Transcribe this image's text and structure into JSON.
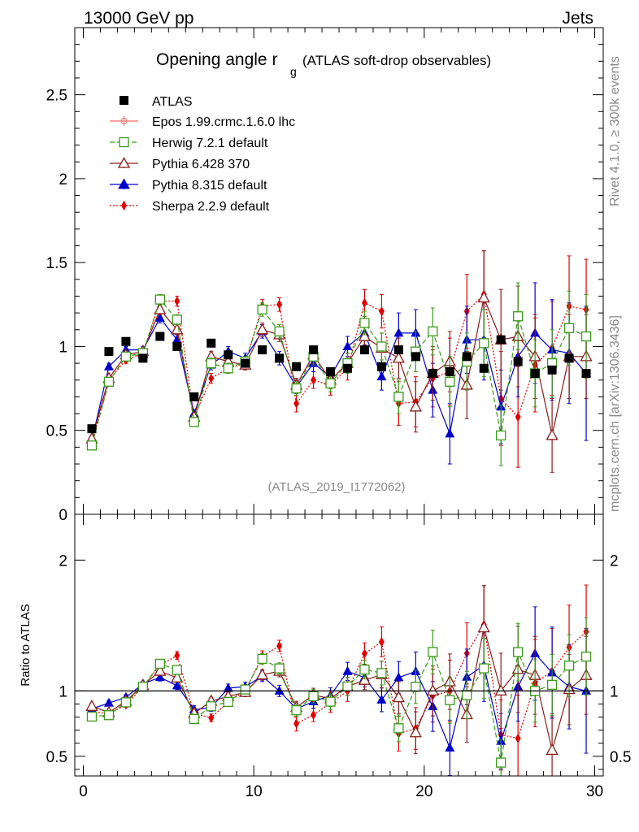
{
  "header": {
    "left": "13000 GeV pp",
    "right": "Jets"
  },
  "side_labels": {
    "rivet": "Rivet 4.1.0, ≥ 300k events",
    "mcplots": "mcplots.cern.ch [arXiv:1306.3436]"
  },
  "chart_data": {
    "type": "scatter",
    "title_main": "Opening angle r",
    "title_sub": "g",
    "title_note": "(ATLAS soft-drop observables)",
    "watermark": "(ATLAS_2019_I1772062)",
    "x": [
      0.5,
      1.5,
      2.5,
      3.5,
      4.5,
      5.5,
      6.5,
      7.5,
      8.5,
      9.5,
      10.5,
      11.5,
      12.5,
      13.5,
      14.5,
      15.5,
      16.5,
      17.5,
      18.5,
      19.5,
      20.5,
      21.5,
      22.5,
      23.5,
      24.5,
      25.5,
      26.5,
      27.5,
      28.5,
      29.5
    ],
    "xlim": [
      -0.5,
      30.5
    ],
    "xticks": [
      0,
      10,
      20,
      30
    ],
    "main": {
      "ylim": [
        0,
        2.9
      ],
      "yticks": [
        0,
        0.5,
        1,
        1.5,
        2,
        2.5
      ],
      "yticklabels": [
        "0",
        "0.5",
        "1",
        "1.5",
        "2",
        "2.5"
      ]
    },
    "ratio": {
      "ylabel": "Ratio to ATLAS",
      "ylim": [
        0.35,
        2.35
      ],
      "yticks": [
        0.5,
        1,
        2
      ],
      "yticklabels": [
        "0.5",
        "1",
        "2"
      ]
    },
    "series": [
      {
        "name": "ATLAS",
        "marker": "square",
        "color": "#000000",
        "values": [
          0.51,
          0.97,
          1.03,
          0.93,
          1.06,
          1.0,
          0.7,
          1.02,
          0.95,
          0.9,
          0.98,
          0.93,
          0.88,
          0.98,
          0.85,
          0.87,
          0.98,
          0.88,
          0.98,
          0.94,
          0.84,
          0.85,
          0.94,
          0.87,
          1.04,
          0.91,
          0.84,
          0.86,
          0.93,
          0.84
        ],
        "errors": [
          0.01,
          0.01,
          0.01,
          0.01,
          0.01,
          0.01,
          0.01,
          0.01,
          0.01,
          0.01,
          0.01,
          0.01,
          0.02,
          0.02,
          0.02,
          0.02,
          0.02,
          0.02,
          0.03,
          0.03,
          0.03,
          0.03,
          0.04,
          0.04,
          0.04,
          0.05,
          0.05,
          0.05,
          0.06,
          0.06
        ]
      },
      {
        "name": "Epos 1.99.crmc.1.6.0 lhc",
        "marker": "plus-circle",
        "color": "#f08080",
        "values": []
      },
      {
        "name": "Herwig 7.2.1 default",
        "marker": "open-square",
        "color": "#3a9a1a",
        "dash": "6,3",
        "values": [
          0.41,
          0.79,
          0.94,
          0.96,
          1.28,
          1.16,
          0.55,
          0.9,
          0.87,
          0.91,
          1.22,
          1.09,
          0.75,
          0.94,
          0.78,
          0.9,
          1.14,
          1.0,
          0.7,
          0.97,
          1.09,
          0.79,
          0.91,
          1.02,
          0.47,
          1.18,
          0.84,
          0.9,
          1.11,
          1.06
        ],
        "errors": [
          0.01,
          0.02,
          0.02,
          0.02,
          0.03,
          0.03,
          0.02,
          0.03,
          0.03,
          0.03,
          0.04,
          0.04,
          0.04,
          0.05,
          0.05,
          0.06,
          0.07,
          0.08,
          0.1,
          0.12,
          0.14,
          0.15,
          0.17,
          0.2,
          0.18,
          0.2,
          0.2,
          0.2,
          0.22,
          0.25
        ]
      },
      {
        "name": "Pythia 6.428 370",
        "marker": "open-triangle",
        "color": "#8b1a1a",
        "values": [
          0.45,
          0.81,
          0.95,
          0.97,
          1.22,
          1.1,
          0.58,
          0.94,
          0.91,
          0.89,
          1.1,
          1.07,
          0.77,
          0.95,
          0.8,
          0.9,
          1.06,
          0.99,
          0.93,
          0.64,
          0.84,
          0.91,
          0.77,
          1.29,
          1.04,
          1.06,
          0.94,
          0.47,
          0.94,
          0.94
        ],
        "errors": [
          0.01,
          0.02,
          0.02,
          0.02,
          0.03,
          0.03,
          0.02,
          0.03,
          0.03,
          0.03,
          0.04,
          0.04,
          0.04,
          0.05,
          0.05,
          0.06,
          0.07,
          0.09,
          0.12,
          0.15,
          0.16,
          0.18,
          0.2,
          0.28,
          0.3,
          0.3,
          0.25,
          0.22,
          0.25,
          0.25
        ]
      },
      {
        "name": "Pythia 8.315 default",
        "marker": "triangle",
        "color": "#0000cc",
        "values": [
          0.44,
          0.88,
          0.98,
          0.98,
          1.17,
          1.04,
          0.6,
          0.89,
          0.97,
          0.93,
          1.09,
          0.93,
          0.76,
          0.9,
          0.82,
          1.0,
          1.08,
          0.82,
          1.08,
          1.08,
          0.74,
          0.48,
          1.04,
          1.04,
          0.64,
          0.94,
          1.08,
          0.98,
          0.96,
          0.84
        ],
        "errors": [
          0.01,
          0.02,
          0.02,
          0.02,
          0.03,
          0.03,
          0.02,
          0.03,
          0.03,
          0.03,
          0.04,
          0.04,
          0.04,
          0.05,
          0.05,
          0.06,
          0.07,
          0.08,
          0.12,
          0.14,
          0.16,
          0.18,
          0.2,
          0.24,
          0.22,
          0.24,
          0.3,
          0.3,
          0.3,
          0.4
        ]
      },
      {
        "name": "Sherpa 2.2.9 default",
        "marker": "diamond",
        "color": "#e00000",
        "dash": "2,2",
        "values": [
          0.43,
          0.8,
          0.92,
          0.96,
          1.27,
          1.27,
          0.58,
          0.81,
          0.87,
          0.9,
          1.24,
          1.25,
          0.66,
          0.8,
          0.77,
          0.87,
          1.26,
          1.21,
          0.66,
          0.67,
          0.81,
          0.85,
          1.21,
          1.31,
          0.69,
          0.58,
          0.89,
          0.99,
          1.24,
          1.22
        ],
        "errors": [
          0.01,
          0.02,
          0.02,
          0.02,
          0.03,
          0.03,
          0.02,
          0.03,
          0.03,
          0.03,
          0.04,
          0.04,
          0.05,
          0.05,
          0.06,
          0.07,
          0.08,
          0.1,
          0.13,
          0.15,
          0.17,
          0.2,
          0.22,
          0.26,
          0.28,
          0.3,
          0.28,
          0.28,
          0.3,
          0.3
        ]
      }
    ]
  }
}
